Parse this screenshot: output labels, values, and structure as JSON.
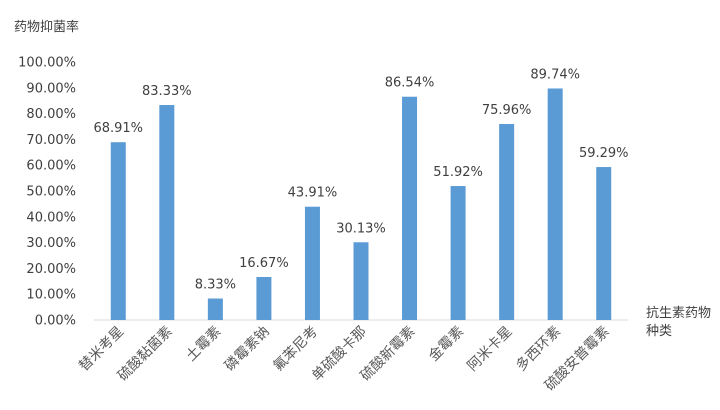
{
  "chart_data": {
    "type": "bar",
    "ylabel": "药物抑菌率",
    "xlabel_lines": [
      "抗生素药物",
      "种类"
    ],
    "categories": [
      "替米考星",
      "硫酸黏菌素",
      "土霉素",
      "磷霉素钠",
      "氟苯尼考",
      "单硫酸卡那",
      "硫酸新霉素",
      "金霉素",
      "阿米卡星",
      "多西环素",
      "硫酸安普霉素"
    ],
    "values": [
      68.91,
      83.33,
      8.33,
      16.67,
      43.91,
      30.13,
      86.54,
      51.92,
      75.96,
      89.74,
      59.29
    ],
    "data_labels": [
      "68.91%",
      "83.33%",
      "8.33%",
      "16.67%",
      "43.91%",
      "30.13%",
      "86.54%",
      "51.92%",
      "75.96%",
      "89.74%",
      "59.29%"
    ],
    "ylim": [
      0,
      100
    ],
    "yticks": [
      "0.00%",
      "10.00%",
      "20.00%",
      "30.00%",
      "40.00%",
      "50.00%",
      "60.00%",
      "70.00%",
      "80.00%",
      "90.00%",
      "100.00%"
    ],
    "grid": false,
    "legend": false,
    "bar_color": "#5b9bd5"
  }
}
